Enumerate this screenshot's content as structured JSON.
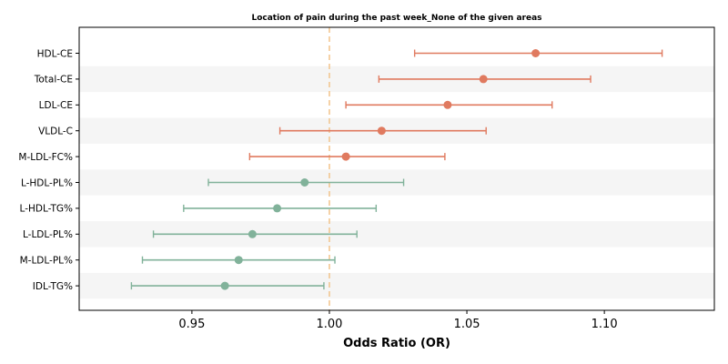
{
  "chart_data": {
    "type": "forest",
    "title": "Location of pain during the past week_None of the given areas",
    "xlabel": "Odds Ratio (OR)",
    "xlim": [
      0.909,
      1.14
    ],
    "xticks": [
      0.95,
      1.0,
      1.05,
      1.1
    ],
    "xtick_labels": [
      "0.95",
      "1.00",
      "1.05",
      "1.10"
    ],
    "reference_line": 1.0,
    "reference_color": "#f2c38a",
    "colors": {
      "positive": "#e07a5f",
      "negative": "#81b29a"
    },
    "row_shading": "#f5f5f5",
    "rows": [
      {
        "label": "HDL-CE",
        "or": 1.075,
        "lo": 1.031,
        "hi": 1.121,
        "group": "positive"
      },
      {
        "label": "Total-CE",
        "or": 1.056,
        "lo": 1.018,
        "hi": 1.095,
        "group": "positive"
      },
      {
        "label": "LDL-CE",
        "or": 1.043,
        "lo": 1.006,
        "hi": 1.081,
        "group": "positive"
      },
      {
        "label": "VLDL-C",
        "or": 1.019,
        "lo": 0.982,
        "hi": 1.057,
        "group": "positive"
      },
      {
        "label": "M-LDL-FC%",
        "or": 1.006,
        "lo": 0.971,
        "hi": 1.042,
        "group": "positive"
      },
      {
        "label": "L-HDL-PL%",
        "or": 0.991,
        "lo": 0.956,
        "hi": 1.027,
        "group": "negative"
      },
      {
        "label": "L-HDL-TG%",
        "or": 0.981,
        "lo": 0.947,
        "hi": 1.017,
        "group": "negative"
      },
      {
        "label": "L-LDL-PL%",
        "or": 0.972,
        "lo": 0.936,
        "hi": 1.01,
        "group": "negative"
      },
      {
        "label": "M-LDL-PL%",
        "or": 0.967,
        "lo": 0.932,
        "hi": 1.002,
        "group": "negative"
      },
      {
        "label": "IDL-TG%",
        "or": 0.962,
        "lo": 0.928,
        "hi": 0.998,
        "group": "negative"
      }
    ]
  }
}
